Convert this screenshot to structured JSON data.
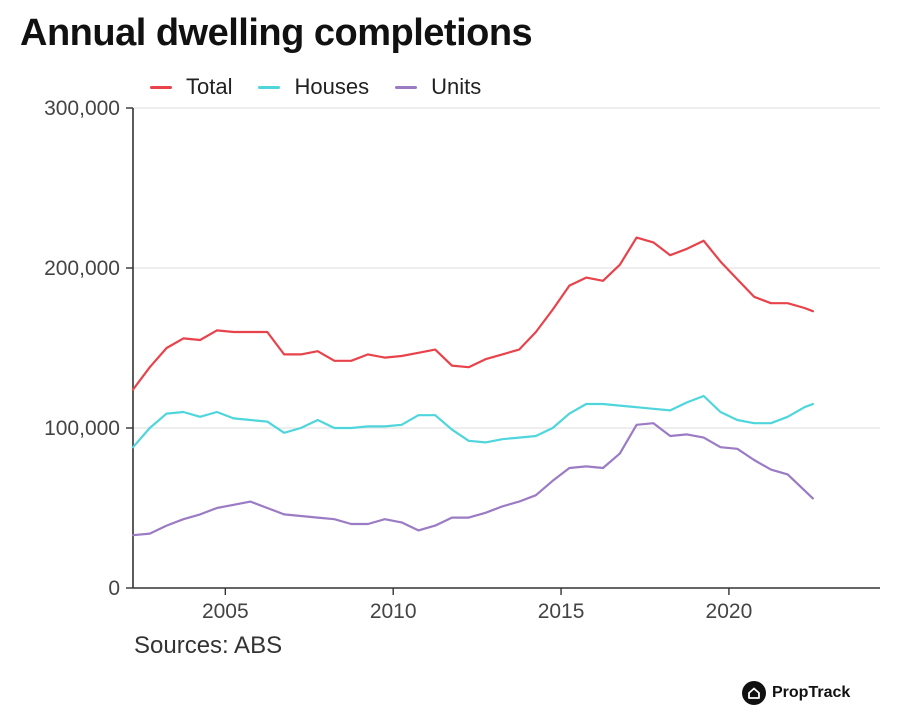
{
  "chart_data": {
    "type": "line",
    "title": "Annual dwelling completions",
    "xlabel": "",
    "ylabel": "",
    "xlim": [
      2002.25,
      2024.5
    ],
    "ylim": [
      0,
      300000
    ],
    "x_ticks": [
      2005,
      2010,
      2015,
      2020
    ],
    "y_ticks": [
      0,
      100000,
      200000,
      300000
    ],
    "x_tick_labels": [
      "2005",
      "2010",
      "2015",
      "2020"
    ],
    "y_tick_labels": [
      "0",
      "100,000",
      "200,000",
      "300,000"
    ],
    "grid": "horizontal",
    "legend_position": "top-left",
    "x": [
      2002.25,
      2002.75,
      2003.25,
      2003.75,
      2004.25,
      2004.75,
      2005.25,
      2005.75,
      2006.25,
      2006.75,
      2007.25,
      2007.75,
      2008.25,
      2008.75,
      2009.25,
      2009.75,
      2010.25,
      2010.75,
      2011.25,
      2011.75,
      2012.25,
      2012.75,
      2013.25,
      2013.75,
      2014.25,
      2014.75,
      2015.25,
      2015.75,
      2016.25,
      2016.75,
      2017.25,
      2017.75,
      2018.25,
      2018.75,
      2019.25,
      2019.75,
      2020.25,
      2020.75,
      2021.25,
      2021.75,
      2022.25,
      2022.5
    ],
    "series": [
      {
        "name": "Total",
        "color": "#e8434b",
        "values": [
          124000,
          138000,
          150000,
          156000,
          155000,
          161000,
          160000,
          160000,
          160000,
          146000,
          146000,
          148000,
          142000,
          142000,
          146000,
          144000,
          145000,
          147000,
          149000,
          139000,
          138000,
          143000,
          146000,
          149000,
          160000,
          174000,
          189000,
          194000,
          192000,
          202000,
          219000,
          216000,
          208000,
          212000,
          217000,
          204000,
          193000,
          182000,
          178000,
          178000,
          175000,
          173000
        ]
      },
      {
        "name": "Houses",
        "color": "#4fd6dc",
        "values": [
          88000,
          100000,
          109000,
          110000,
          107000,
          110000,
          106000,
          105000,
          104000,
          97000,
          100000,
          105000,
          100000,
          100000,
          101000,
          101000,
          102000,
          108000,
          108000,
          99000,
          92000,
          91000,
          93000,
          94000,
          95000,
          100000,
          109000,
          115000,
          115000,
          114000,
          113000,
          112000,
          111000,
          116000,
          120000,
          110000,
          105000,
          103000,
          103000,
          107000,
          113000,
          115000
        ]
      },
      {
        "name": "Units",
        "color": "#9b7bc4",
        "values": [
          33000,
          34000,
          39000,
          43000,
          46000,
          50000,
          52000,
          54000,
          50000,
          46000,
          45000,
          44000,
          43000,
          40000,
          40000,
          43000,
          41000,
          36000,
          39000,
          44000,
          44000,
          47000,
          51000,
          54000,
          58000,
          67000,
          75000,
          76000,
          75000,
          84000,
          102000,
          103000,
          95000,
          96000,
          94000,
          88000,
          87000,
          80000,
          74000,
          71000,
          61000,
          56000
        ]
      }
    ]
  },
  "footer": {
    "source": "Sources: ABS",
    "brand": "PropTrack"
  }
}
